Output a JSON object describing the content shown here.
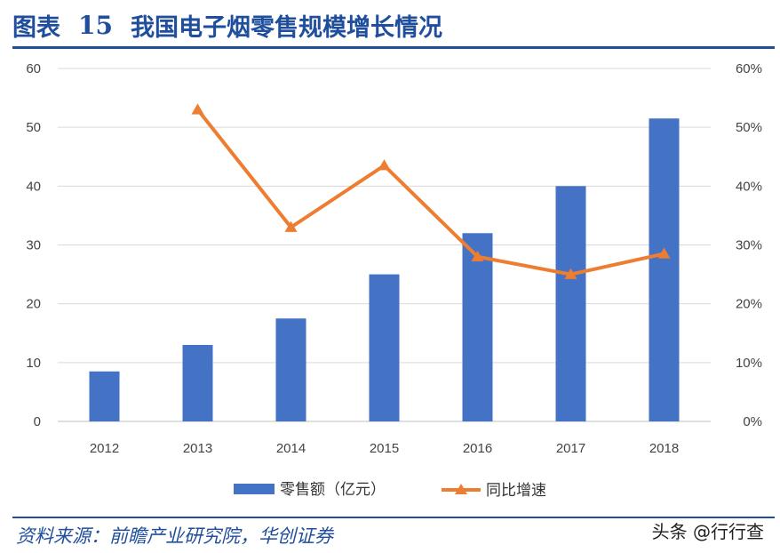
{
  "figure": {
    "label": "图表",
    "number": "15",
    "title": "我国电子烟零售规模增长情况"
  },
  "source": "资料来源：前瞻产业研究院，华创证券",
  "watermark": "头条 @行行查",
  "chart_data": {
    "type": "bar",
    "categories": [
      "2012",
      "2013",
      "2014",
      "2015",
      "2016",
      "2017",
      "2018"
    ],
    "series": [
      {
        "name": "零售额（亿元）",
        "type": "bar",
        "axis": "left",
        "color": "#4472c4",
        "values": [
          8.5,
          13,
          17.5,
          25,
          32,
          40,
          51.5
        ]
      },
      {
        "name": "同比增速",
        "type": "line",
        "axis": "right",
        "color": "#ed7d31",
        "marker": "triangle",
        "values": [
          null,
          0.53,
          0.33,
          0.435,
          0.28,
          0.25,
          0.285
        ]
      }
    ],
    "y_left": {
      "min": 0,
      "max": 60,
      "ticks": [
        0,
        10,
        20,
        30,
        40,
        50,
        60
      ]
    },
    "y_right": {
      "min": 0,
      "max": 0.6,
      "ticks": [
        "0%",
        "10%",
        "20%",
        "30%",
        "40%",
        "50%",
        "60%"
      ]
    },
    "grid": true,
    "legend_position": "bottom"
  }
}
